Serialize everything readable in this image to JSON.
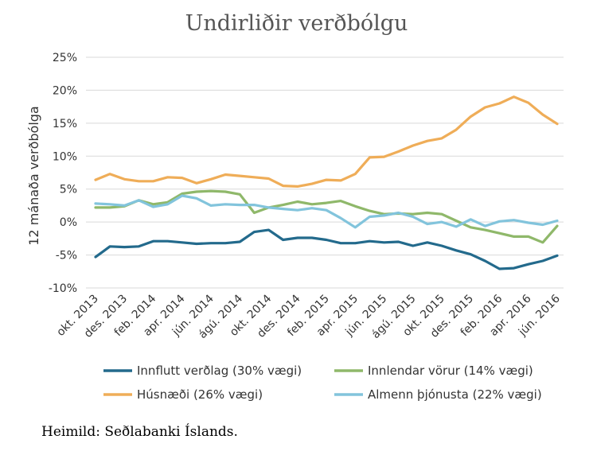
{
  "title": "Undirliðir verðbólgu",
  "source": "Heimild: Seðlabanki Íslands.",
  "chart_data": {
    "type": "line",
    "title": "Undirliðir verðbólgu",
    "ylabel": "12 mánaða verðbólga",
    "xlabel": "",
    "ylim": [
      -10,
      25
    ],
    "yticks": [
      -10,
      -5,
      0,
      5,
      10,
      15,
      20,
      25
    ],
    "ytick_labels": [
      "-10%",
      "-5%",
      "0%",
      "5%",
      "10%",
      "15%",
      "20%",
      "25%"
    ],
    "grid": "horizontal",
    "legend_position": "bottom",
    "x": [
      "okt. 2013",
      "nóv. 2013",
      "des. 2013",
      "jan. 2014",
      "feb. 2014",
      "mar. 2014",
      "apr. 2014",
      "maí 2014",
      "jún. 2014",
      "júl. 2014",
      "ágú. 2014",
      "sep. 2014",
      "okt. 2014",
      "nóv. 2014",
      "des. 2014",
      "jan. 2015",
      "feb. 2015",
      "mar. 2015",
      "apr. 2015",
      "maí 2015",
      "jún. 2015",
      "júl. 2015",
      "ágú. 2015",
      "sep. 2015",
      "okt. 2015",
      "nóv. 2015",
      "des. 2015",
      "jan. 2016",
      "feb. 2016",
      "mar. 2016",
      "apr. 2016",
      "maí 2016",
      "jún. 2016"
    ],
    "xtick_labels": [
      "okt. 2013",
      "des. 2013",
      "feb. 2014",
      "apr. 2014",
      "jún. 2014",
      "ágú. 2014",
      "okt. 2014",
      "des. 2014",
      "feb. 2015",
      "apr. 2015",
      "jún. 2015",
      "ágú. 2015",
      "okt. 2015",
      "des. 2015",
      "feb. 2016",
      "apr. 2016",
      "jún. 2016"
    ],
    "series": [
      {
        "name": "Innflutt verðlag (30% vægi)",
        "color": "#236a8c",
        "values": [
          -5.3,
          -3.7,
          -3.8,
          -3.7,
          -2.9,
          -2.9,
          -3.1,
          -3.3,
          -3.2,
          -3.2,
          -3.0,
          -1.5,
          -1.2,
          -2.7,
          -2.4,
          -2.4,
          -2.7,
          -3.2,
          -3.2,
          -2.9,
          -3.1,
          -3.0,
          -3.6,
          -3.1,
          -3.6,
          -4.3,
          -4.9,
          -5.9,
          -7.1,
          -7.0,
          -6.4,
          -5.9,
          -5.1
        ]
      },
      {
        "name": "Innlendar vörur (14% vægi)",
        "color": "#8fb86a",
        "values": [
          2.2,
          2.2,
          2.4,
          3.3,
          2.7,
          3.0,
          4.3,
          4.6,
          4.7,
          4.6,
          4.2,
          1.4,
          2.2,
          2.6,
          3.1,
          2.7,
          2.9,
          3.2,
          2.4,
          1.7,
          1.2,
          1.3,
          1.2,
          1.4,
          1.2,
          0.2,
          -0.8,
          -1.2,
          -1.7,
          -2.2,
          -2.2,
          -3.1,
          -0.6
        ]
      },
      {
        "name": "Húsnæði (26% vægi)",
        "color": "#efad58",
        "values": [
          6.4,
          7.3,
          6.5,
          6.2,
          6.2,
          6.8,
          6.7,
          5.9,
          6.5,
          7.2,
          7.0,
          6.8,
          6.6,
          5.5,
          5.4,
          5.8,
          6.4,
          6.3,
          7.3,
          9.8,
          9.9,
          10.7,
          11.6,
          12.3,
          12.7,
          14.0,
          16.0,
          17.4,
          18.0,
          19.0,
          18.1,
          16.3,
          14.9
        ]
      },
      {
        "name": "Almenn þjónusta (22% vægi)",
        "color": "#82c4dc",
        "values": [
          2.8,
          2.7,
          2.5,
          3.3,
          2.3,
          2.7,
          4.0,
          3.6,
          2.5,
          2.7,
          2.6,
          2.6,
          2.2,
          2.0,
          1.8,
          2.1,
          1.8,
          0.6,
          -0.8,
          0.8,
          1.0,
          1.4,
          0.8,
          -0.3,
          0.0,
          -0.7,
          0.4,
          -0.6,
          0.1,
          0.3,
          -0.1,
          -0.4,
          0.2
        ]
      }
    ]
  }
}
